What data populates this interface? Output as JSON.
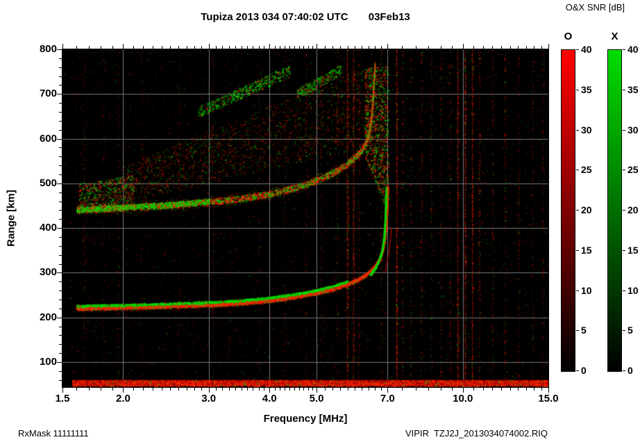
{
  "title": "Tupiza 2013 034 07:40:02 UTC       03Feb13",
  "colorbar": {
    "title": "O&X SNR [dB]",
    "min": 0,
    "max": 40,
    "ticks": [
      0,
      5,
      10,
      15,
      20,
      25,
      30,
      35,
      40
    ],
    "bars": [
      {
        "label": "O",
        "top_color": "#ff0000"
      },
      {
        "label": "X",
        "top_color": "#00dd00"
      }
    ]
  },
  "footer": {
    "left": "RxMask 11111111",
    "right": "VIPIR  TZJ2J_2013034074002.RIQ"
  },
  "chart_data": {
    "type": "heatmap",
    "title": "Tupiza 2013 034 07:40:02 UTC 03Feb13",
    "xlabel": "Frequency [MHz]",
    "ylabel": "Range [km]",
    "x_scale": "log",
    "x_range": [
      1.5,
      15.0
    ],
    "y_range": [
      44,
      800
    ],
    "x_ticks": [
      1.5,
      2,
      3,
      4,
      5,
      7,
      10,
      15
    ],
    "x_tick_labels": [
      "1.5",
      "2.0",
      "3.0",
      "4.0",
      "5.0",
      "7.0",
      "10.0",
      "15.0"
    ],
    "x_minor_ticks": [
      1.6,
      1.7,
      1.8,
      1.9,
      2.1,
      2.2,
      2.3,
      2.4,
      2.5,
      2.6,
      2.7,
      2.8,
      2.9,
      3.1,
      3.2,
      3.3,
      3.4,
      3.5,
      3.6,
      3.7,
      3.8,
      3.9,
      4.1,
      4.2,
      4.3,
      4.4,
      4.5,
      4.6,
      4.7,
      4.8,
      4.9,
      5.2,
      5.4,
      5.6,
      5.8,
      6,
      6.2,
      6.4,
      6.6,
      6.8,
      7.5,
      8,
      8.5,
      9,
      9.5,
      10.5,
      11,
      11.5,
      12,
      12.5,
      13,
      13.5,
      14,
      14.5
    ],
    "y_ticks": [
      800,
      700,
      600,
      500,
      400,
      300,
      200,
      100
    ],
    "y_tick_labels": [
      "800",
      "700",
      "600",
      "500",
      "400",
      "300",
      "200",
      "100"
    ],
    "y_minor_step": 20,
    "grid_x": [
      2,
      3,
      4,
      5,
      7,
      10
    ],
    "grid_y": [
      100,
      200,
      300,
      400,
      500,
      600,
      700
    ],
    "colors": {
      "o_mode": "#ff0000",
      "x_mode": "#00dd00",
      "background": "#000000",
      "grid": "#787878"
    },
    "traces": {
      "main_o": {
        "name": "F-region echo O-mode",
        "color": "#ff0000",
        "points": [
          [
            1.6,
            220
          ],
          [
            2.0,
            222
          ],
          [
            2.5,
            225
          ],
          [
            3.0,
            228
          ],
          [
            3.5,
            232
          ],
          [
            4.0,
            238
          ],
          [
            4.5,
            246
          ],
          [
            5.0,
            255
          ],
          [
            5.4,
            264
          ],
          [
            5.8,
            275
          ],
          [
            6.1,
            286
          ],
          [
            6.4,
            300
          ],
          [
            6.6,
            315
          ],
          [
            6.75,
            332
          ],
          [
            6.85,
            352
          ],
          [
            6.92,
            380
          ],
          [
            6.97,
            420
          ],
          [
            7.0,
            470
          ],
          [
            7.01,
            492
          ]
        ]
      },
      "main_x_branch": {
        "name": "F-region echo X-mode near critical frequency",
        "color": "#00dd00",
        "points": [
          [
            6.45,
            295
          ],
          [
            6.6,
            310
          ],
          [
            6.72,
            328
          ],
          [
            6.82,
            350
          ],
          [
            6.88,
            378
          ],
          [
            6.92,
            415
          ],
          [
            6.95,
            468
          ],
          [
            6.96,
            492
          ]
        ]
      },
      "second_reflection_thin": {
        "name": "thin outer echo branch",
        "color": "#cc0000",
        "points": [
          [
            6.92,
            300
          ],
          [
            7.0,
            328
          ],
          [
            7.06,
            352
          ],
          [
            7.1,
            378
          ],
          [
            7.13,
            400
          ]
        ]
      },
      "second_hop": {
        "name": "second-hop echo",
        "color": "mixed",
        "points": [
          [
            1.6,
            441
          ],
          [
            2.0,
            446
          ],
          [
            2.5,
            452
          ],
          [
            3.0,
            459
          ],
          [
            3.5,
            467
          ],
          [
            4.0,
            477
          ],
          [
            4.4,
            488
          ],
          [
            4.8,
            500
          ],
          [
            5.1,
            512
          ],
          [
            5.4,
            524
          ],
          [
            5.7,
            540
          ],
          [
            5.95,
            556
          ],
          [
            6.15,
            572
          ],
          [
            6.3,
            590
          ],
          [
            6.4,
            612
          ],
          [
            6.47,
            645
          ],
          [
            6.52,
            690
          ],
          [
            6.56,
            740
          ],
          [
            6.58,
            764
          ]
        ]
      }
    },
    "spread_regions": [
      {
        "name": "multi-hop spread echoes",
        "f0": 2.0,
        "f1": 6.3,
        "rb0": 458,
        "rt0": 540,
        "rb1": 580,
        "rt1": 762,
        "count": 2400,
        "green": 0.28,
        "aMax": 0.4
      },
      {
        "name": "spread near critical frequency",
        "f0": 6.28,
        "f1": 7.02,
        "rb0": 560,
        "rt0": 760,
        "rb1": 430,
        "rt1": 762,
        "count": 1500,
        "green": 0.45,
        "aMax": 0.75
      },
      {
        "name": "upper green streak",
        "f0": 2.85,
        "f1": 4.4,
        "rb0": 648,
        "rt0": 672,
        "rb1": 738,
        "rt1": 766,
        "count": 650,
        "green": 0.8,
        "aMax": 0.8
      },
      {
        "name": "upper green streak 2",
        "f0": 4.55,
        "f1": 5.6,
        "rb0": 690,
        "rt0": 712,
        "rb1": 742,
        "rt1": 766,
        "count": 380,
        "green": 0.75,
        "aMax": 0.7
      },
      {
        "name": "left spread patch",
        "f0": 1.62,
        "f1": 2.1,
        "rb0": 448,
        "rt0": 500,
        "rb1": 455,
        "rt1": 520,
        "count": 700,
        "green": 0.5,
        "aMax": 0.7
      }
    ],
    "noise": {
      "background_speckles": 4000,
      "green_fraction": 0.25,
      "rfi_lines": [
        {
          "f": 1.66,
          "d": 0.22
        },
        {
          "f": 1.82,
          "d": 0.15
        },
        {
          "f": 1.95,
          "d": 0.2
        },
        {
          "f": 2.18,
          "d": 0.15
        },
        {
          "f": 2.6,
          "d": 0.18
        },
        {
          "f": 3.05,
          "d": 0.2
        },
        {
          "f": 3.3,
          "d": 0.15
        },
        {
          "f": 3.8,
          "d": 0.17
        },
        {
          "f": 4.3,
          "d": 0.2
        },
        {
          "f": 4.75,
          "d": 0.24
        },
        {
          "f": 5.1,
          "d": 0.2
        },
        {
          "f": 5.5,
          "d": 0.28
        },
        {
          "f": 5.78,
          "d": 0.5
        },
        {
          "f": 5.95,
          "d": 0.45
        },
        {
          "f": 6.1,
          "d": 0.32
        },
        {
          "f": 6.78,
          "d": 0.3,
          "g": 0.45
        },
        {
          "f": 7.3,
          "d": 0.55
        },
        {
          "f": 7.5,
          "d": 0.32
        },
        {
          "f": 7.8,
          "d": 0.28,
          "g": 0.3
        },
        {
          "f": 8.2,
          "d": 0.32
        },
        {
          "f": 8.6,
          "d": 0.28,
          "g": 0.3
        },
        {
          "f": 9.0,
          "d": 0.28
        },
        {
          "f": 9.4,
          "d": 0.32
        },
        {
          "f": 9.75,
          "d": 0.48
        },
        {
          "f": 10.1,
          "d": 0.5
        },
        {
          "f": 10.45,
          "d": 0.45
        },
        {
          "f": 10.8,
          "d": 0.38
        },
        {
          "f": 11.5,
          "d": 0.3
        },
        {
          "f": 12.2,
          "d": 0.32
        },
        {
          "f": 13.0,
          "d": 0.28
        },
        {
          "f": 13.9,
          "d": 0.28
        },
        {
          "f": 14.6,
          "d": 0.24
        }
      ],
      "bottom_band": {
        "r0": 46,
        "r1": 60,
        "f_start": 1.57
      }
    }
  }
}
